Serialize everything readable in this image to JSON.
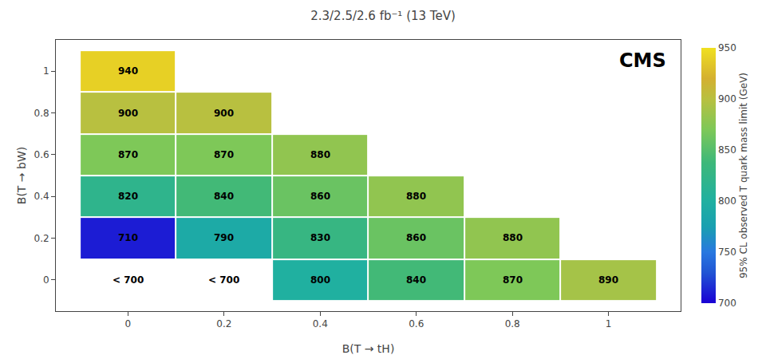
{
  "chart_data": {
    "type": "heatmap",
    "title": "2.3/2.5/2.6 fb⁻¹ (13 TeV)",
    "xlabel": "B(T → tH)",
    "ylabel": "B(T → bW)",
    "colorbar_label": "95% CL observed T quark mass limit (GeV)",
    "annotations": [
      "CMS"
    ],
    "xlim": [
      -0.15,
      1.15
    ],
    "ylim": [
      -0.15,
      1.15
    ],
    "xticks": [
      0,
      0.2,
      0.4,
      0.6,
      0.8,
      1
    ],
    "yticks": [
      0,
      0.2,
      0.4,
      0.6,
      0.8,
      1
    ],
    "colorbar_range": [
      700,
      950
    ],
    "colorbar_ticks": [
      700,
      750,
      800,
      850,
      900,
      950
    ],
    "grid": false,
    "data_labels": true,
    "cells": [
      {
        "x": 0,
        "y": 0,
        "value": 685,
        "label": "< 700",
        "color": "white"
      },
      {
        "x": 0.2,
        "y": 0,
        "value": 685,
        "label": "< 700",
        "color": "white"
      },
      {
        "x": 0.4,
        "y": 0,
        "value": 800
      },
      {
        "x": 0.6,
        "y": 0,
        "value": 840
      },
      {
        "x": 0.8,
        "y": 0,
        "value": 870
      },
      {
        "x": 1,
        "y": 0,
        "value": 890
      },
      {
        "x": 0,
        "y": 0.2,
        "value": 710
      },
      {
        "x": 0.2,
        "y": 0.2,
        "value": 790
      },
      {
        "x": 0.4,
        "y": 0.2,
        "value": 830
      },
      {
        "x": 0.6,
        "y": 0.2,
        "value": 860
      },
      {
        "x": 0.8,
        "y": 0.2,
        "value": 880
      },
      {
        "x": 0,
        "y": 0.4,
        "value": 820
      },
      {
        "x": 0.2,
        "y": 0.4,
        "value": 840
      },
      {
        "x": 0.4,
        "y": 0.4,
        "value": 860
      },
      {
        "x": 0.6,
        "y": 0.4,
        "value": 880
      },
      {
        "x": 0,
        "y": 0.6,
        "value": 870
      },
      {
        "x": 0.2,
        "y": 0.6,
        "value": 870
      },
      {
        "x": 0.4,
        "y": 0.6,
        "value": 880
      },
      {
        "x": 0,
        "y": 0.8,
        "value": 900
      },
      {
        "x": 0.2,
        "y": 0.8,
        "value": 900
      },
      {
        "x": 0,
        "y": 1,
        "value": 940
      }
    ]
  }
}
